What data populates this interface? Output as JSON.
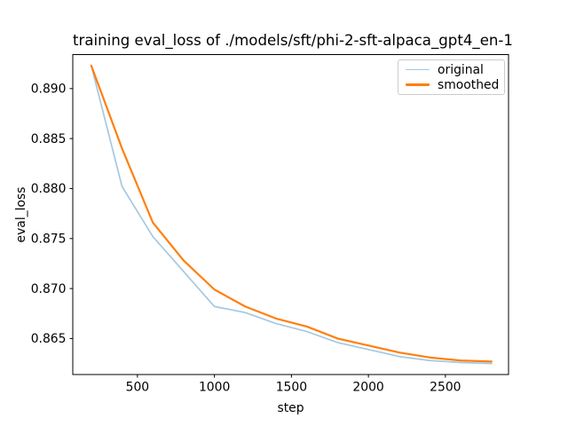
{
  "chart_data": {
    "type": "line",
    "title": "training eval_loss of ./models/sft/phi-2-sft-alpaca_gpt4_en-1",
    "xlabel": "step",
    "ylabel": "eval_loss",
    "xlim": [
      80,
      2910
    ],
    "ylim": [
      0.8614,
      0.8934
    ],
    "xticks": [
      500,
      1000,
      1500,
      2000,
      2500
    ],
    "xtick_labels": [
      "500",
      "1000",
      "1500",
      "2000",
      "2500"
    ],
    "yticks": [
      0.865,
      0.87,
      0.875,
      0.88,
      0.885,
      0.89
    ],
    "ytick_labels": [
      "0.865",
      "0.870",
      "0.875",
      "0.880",
      "0.885",
      "0.890"
    ],
    "grid": false,
    "legend": {
      "position": "upper right",
      "entries": [
        "original",
        "smoothed"
      ]
    },
    "x": [
      200,
      400,
      600,
      800,
      1000,
      1200,
      1400,
      1600,
      1800,
      2000,
      2200,
      2400,
      2600,
      2800
    ],
    "series": [
      {
        "name": "original",
        "color": "#a5c8e1",
        "width": 1.7,
        "values": [
          0.8923,
          0.8802,
          0.8752,
          0.8717,
          0.8682,
          0.8676,
          0.8665,
          0.8657,
          0.8646,
          0.8639,
          0.8632,
          0.8628,
          0.8626,
          0.8625
        ]
      },
      {
        "name": "smoothed",
        "color": "#ff7f0e",
        "width": 2.2,
        "values": [
          0.8923,
          0.884,
          0.8766,
          0.8728,
          0.8699,
          0.8682,
          0.867,
          0.8662,
          0.865,
          0.8643,
          0.8636,
          0.8631,
          0.8628,
          0.8627
        ]
      }
    ],
    "colors": {
      "axes": "#000000",
      "text": "#000000",
      "legend_border": "#cccccc",
      "background": "#ffffff"
    }
  }
}
